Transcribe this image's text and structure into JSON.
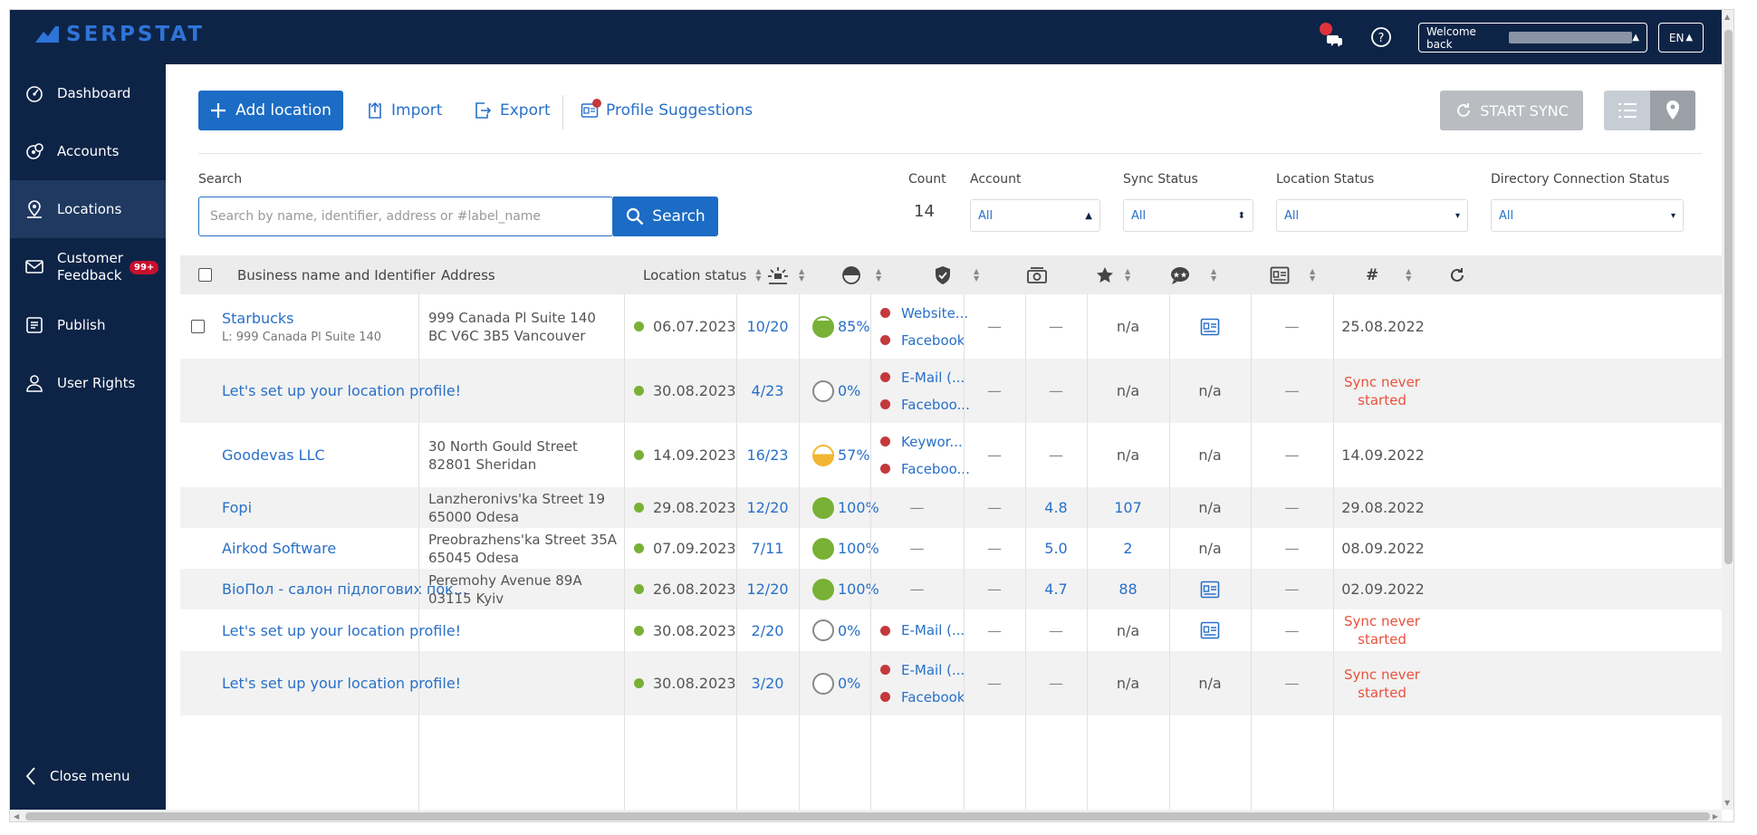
{
  "app": {
    "logo_text": "SERPSTAT"
  },
  "topbar": {
    "welcome_label": "Welcome back",
    "language": "EN",
    "icons": [
      "notifications-icon",
      "help-icon"
    ]
  },
  "sidebar": {
    "items": [
      {
        "label": "Dashboard",
        "icon": "dashboard-icon"
      },
      {
        "label": "Accounts",
        "icon": "accounts-icon"
      },
      {
        "label": "Locations",
        "icon": "location-pin-icon",
        "active": true
      },
      {
        "label": "Customer Feedback",
        "icon": "feedback-icon",
        "badge": "99+"
      },
      {
        "label": "Publish",
        "icon": "publish-icon"
      },
      {
        "label": "User Rights",
        "icon": "user-icon"
      }
    ],
    "close_label": "Close menu"
  },
  "toolbar": {
    "add_label": "Add location",
    "import_label": "Import",
    "export_label": "Export",
    "suggestions_label": "Profile Suggestions",
    "sync_label": "START SYNC"
  },
  "filters": {
    "search_label": "Search",
    "search_placeholder": "Search by name, identifier, address or #label_name",
    "search_button": "Search",
    "count_label": "Count",
    "count_value": "14",
    "account_label": "Account",
    "account_value": "All",
    "sync_status_label": "Sync Status",
    "sync_status_value": "All",
    "location_status_label": "Location Status",
    "location_status_value": "All",
    "directory_label": "Directory Connection Status",
    "directory_value": "All"
  },
  "table": {
    "headers": {
      "business": "Business name and Identifier",
      "address": "Address",
      "location_status": "Location status"
    },
    "rows": [
      {
        "name": "Starbucks",
        "ident": "L: 999 Canada Pl Suite 140",
        "addr1": "999 Canada Pl Suite 140",
        "addr2": "BC V6C 3B5 Vancouver",
        "date": "06.07.2023",
        "score": "10/20",
        "pct": "85%",
        "pct_value": 85,
        "dirs": [
          "Website...",
          "Facebook"
        ],
        "c6": "—",
        "rating": "—",
        "reviews": "n/a",
        "profile": "icon",
        "tag": "—",
        "sync": "25.08.2022",
        "checkbox": true
      },
      {
        "name": "Let's set up your location profile!",
        "ident": "",
        "addr1": "",
        "addr2": "",
        "date": "30.08.2023",
        "score": "4/23",
        "pct": "0%",
        "pct_value": 0,
        "dirs": [
          "E-Mail (...",
          "Faceboo..."
        ],
        "c6": "—",
        "rating": "—",
        "reviews": "n/a",
        "profile": "n/a",
        "tag": "—",
        "sync": "Sync never started"
      },
      {
        "name": "Goodevas LLC",
        "ident": "",
        "addr1": "30 North Gould Street",
        "addr2": "82801 Sheridan",
        "date": "14.09.2023",
        "score": "16/23",
        "pct": "57%",
        "pct_value": 57,
        "dirs": [
          "Keywor...",
          "Faceboo..."
        ],
        "c6": "—",
        "rating": "—",
        "reviews": "n/a",
        "profile": "n/a",
        "tag": "—",
        "sync": "14.09.2022"
      },
      {
        "name": "Fopi",
        "ident": "",
        "addr1": "Lanzheronivs'ka Street 19",
        "addr2": "65000 Odesa",
        "date": "29.08.2023",
        "score": "12/20",
        "pct": "100%",
        "pct_value": 100,
        "dirs": [],
        "c6": "—",
        "rating": "4.8",
        "reviews": "107",
        "profile": "n/a",
        "tag": "—",
        "sync": "29.08.2022"
      },
      {
        "name": "Airkod Software",
        "ident": "",
        "addr1": "Preobrazhens'ka Street 35A",
        "addr2": "65045 Odesa",
        "date": "07.09.2023",
        "score": "7/11",
        "pct": "100%",
        "pct_value": 100,
        "dirs": [],
        "c6": "—",
        "rating": "5.0",
        "reviews": "2",
        "profile": "n/a",
        "tag": "—",
        "sync": "08.09.2022"
      },
      {
        "name": "BioПол - салон підлогових пок...",
        "ident": "",
        "addr1": "Peremohy Avenue 89A",
        "addr2": "03115 Kyiv",
        "date": "26.08.2023",
        "score": "12/20",
        "pct": "100%",
        "pct_value": 100,
        "dirs": [],
        "c6": "—",
        "rating": "4.7",
        "reviews": "88",
        "profile": "icon",
        "tag": "—",
        "sync": "02.09.2022"
      },
      {
        "name": "Let's set up your location profile!",
        "ident": "",
        "addr1": "",
        "addr2": "",
        "date": "30.08.2023",
        "score": "2/20",
        "pct": "0%",
        "pct_value": 0,
        "dirs": [
          "E-Mail (..."
        ],
        "c6": "—",
        "rating": "—",
        "reviews": "n/a",
        "profile": "icon",
        "tag": "—",
        "sync": "Sync never started"
      },
      {
        "name": "Let's set up your location profile!",
        "ident": "",
        "addr1": "",
        "addr2": "",
        "date": "30.08.2023",
        "score": "3/20",
        "pct": "0%",
        "pct_value": 0,
        "dirs": [
          "E-Mail (...",
          "Facebook"
        ],
        "c6": "—",
        "rating": "—",
        "reviews": "n/a",
        "profile": "n/a",
        "tag": "—",
        "sync": "Sync never started"
      }
    ]
  },
  "colors": {
    "navy": "#0d2447",
    "primary": "#1c6cc5",
    "link": "#2870c8",
    "green": "#78b135",
    "red": "#c4393b",
    "badge": "#c8102e",
    "sync_never": "#e8523d"
  }
}
